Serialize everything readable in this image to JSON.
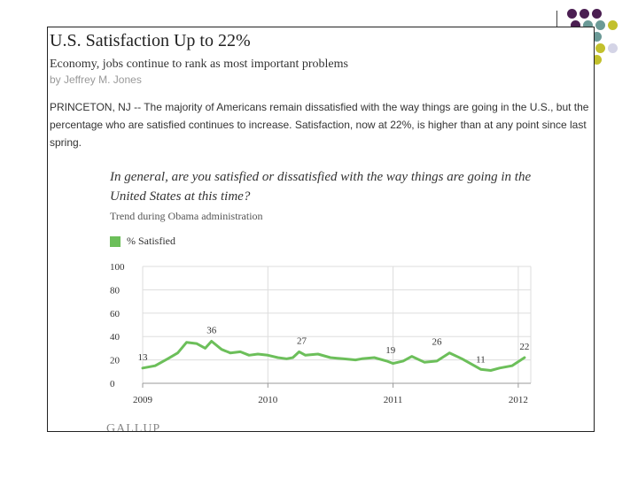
{
  "header": {
    "title": "U.S. Satisfaction Up to 22%",
    "subtitle": "Economy, jobs continue to rank as most important problems",
    "byline": "by Jeffrey M. Jones",
    "lede": "PRINCETON, NJ -- The majority of Americans remain dissatisfied with the way things are going in the U.S., but the percentage who are satisfied continues to increase. Satisfaction, now at 22%, is higher than at any point since last spring."
  },
  "footer": {
    "logo": "GALLUP"
  },
  "colors": {
    "series": "#6cbf5a",
    "grid": "#dddddd",
    "dot_purple": "#4b1f52",
    "dot_teal": "#6b9a97",
    "dot_olive": "#c2c02c",
    "dot_lavender": "#d4d4e6"
  },
  "chart_data": {
    "type": "line",
    "question": "In general, are you satisfied or dissatisfied with the way things are going in the United States at this time?",
    "subtitle": "Trend during Obama administration",
    "legend": [
      "% Satisfied"
    ],
    "ylim": [
      0,
      100
    ],
    "yticks": [
      "0",
      "20",
      "40",
      "60",
      "80",
      "100"
    ],
    "xlim": [
      2009,
      2012.1
    ],
    "xticks": [
      "2009",
      "2010",
      "2011",
      "2012"
    ],
    "series": [
      {
        "name": "% Satisfied",
        "x": [
          2009.0,
          2009.1,
          2009.2,
          2009.28,
          2009.35,
          2009.43,
          2009.5,
          2009.55,
          2009.63,
          2009.7,
          2009.78,
          2009.85,
          2009.92,
          2010.0,
          2010.08,
          2010.15,
          2010.2,
          2010.25,
          2010.3,
          2010.4,
          2010.5,
          2010.6,
          2010.7,
          2010.75,
          2010.85,
          2010.95,
          2011.0,
          2011.08,
          2011.15,
          2011.25,
          2011.35,
          2011.45,
          2011.55,
          2011.65,
          2011.7,
          2011.78,
          2011.85,
          2011.95,
          2012.05
        ],
        "values": [
          13,
          15,
          21,
          26,
          35,
          34,
          30,
          36,
          29,
          26,
          27,
          24,
          25,
          24,
          22,
          21,
          22,
          27,
          24,
          25,
          22,
          21,
          20,
          21,
          22,
          19,
          17,
          19,
          23,
          18,
          19,
          26,
          21,
          15,
          12,
          11,
          13,
          15,
          22
        ]
      }
    ],
    "data_labels": [
      {
        "x": 2009.0,
        "y": 13,
        "text": "13"
      },
      {
        "x": 2009.55,
        "y": 36,
        "text": "36"
      },
      {
        "x": 2010.27,
        "y": 27,
        "text": "27"
      },
      {
        "x": 2010.98,
        "y": 19,
        "text": "19"
      },
      {
        "x": 2011.35,
        "y": 26,
        "text": "26"
      },
      {
        "x": 2011.7,
        "y": 11,
        "text": "11"
      },
      {
        "x": 2012.05,
        "y": 22,
        "text": "22"
      }
    ],
    "grid": true
  }
}
